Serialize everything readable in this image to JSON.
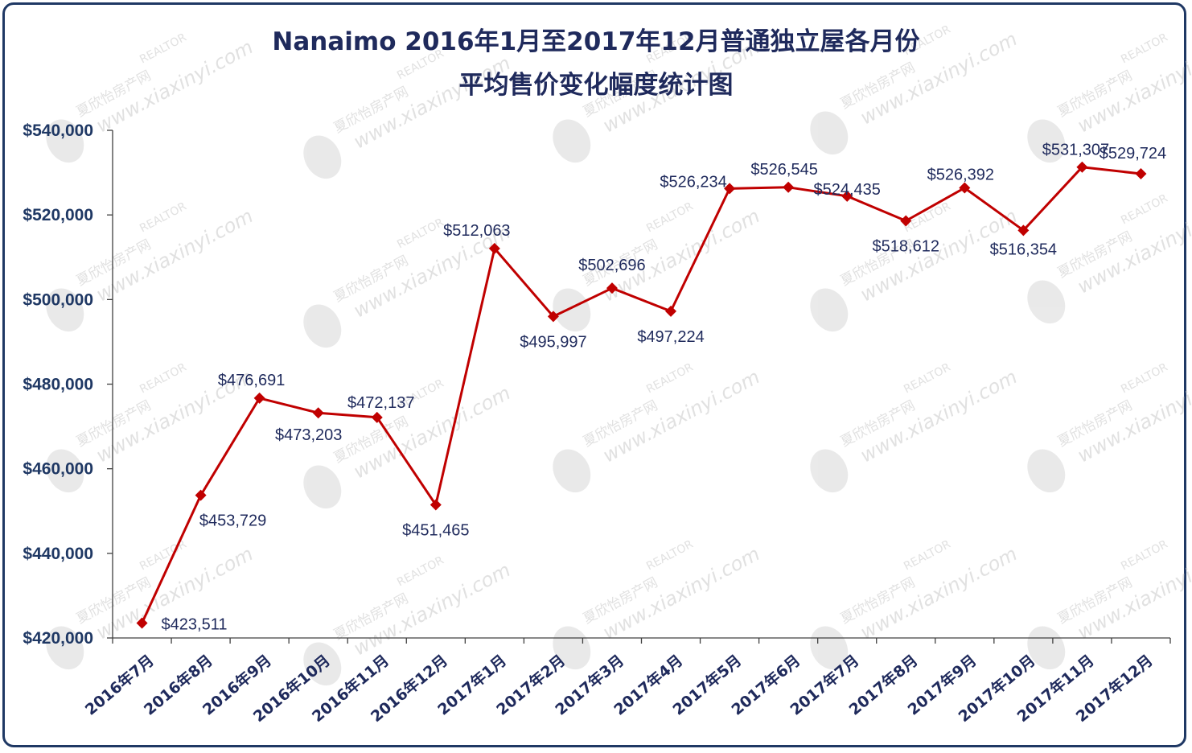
{
  "chart_data": {
    "type": "line",
    "title_line1": "Nanaimo 2016年1月至2017年12月普通独立屋各月份",
    "title_line2": "平均售价变化幅度统计图",
    "categories": [
      "2016年7月",
      "2016年8月",
      "2016年9月",
      "2016年10月",
      "2016年11月",
      "2016年12月",
      "2017年1月",
      "2017年2月",
      "2017年3月",
      "2017年4月",
      "2017年5月",
      "2017年6月",
      "2017年7月",
      "2017年8月",
      "2017年9月",
      "2017年10月",
      "2017年11月",
      "2017年12月"
    ],
    "values": [
      423511,
      453729,
      476691,
      473203,
      472137,
      451465,
      512063,
      495997,
      502696,
      497224,
      526234,
      526545,
      524435,
      518612,
      526392,
      516354,
      531307,
      529724
    ],
    "data_labels": [
      "$423,511",
      "$453,729",
      "$476,691",
      "$473,203",
      "$472,137",
      "$451,465",
      "$512,063",
      "$495,997",
      "$502,696",
      "$497,224",
      "$526,234",
      "$526,545",
      "$524,435",
      "$518,612",
      "$526,392",
      "$516,354",
      "$531,307",
      "$529,724"
    ],
    "yticks": [
      420000,
      440000,
      460000,
      480000,
      500000,
      520000,
      540000
    ],
    "ytick_labels": [
      "$420,000",
      "$440,000",
      "$460,000",
      "$480,000",
      "$500,000",
      "$520,000",
      "$540,000"
    ],
    "ylim": [
      420000,
      540000
    ],
    "grid": false,
    "legend": "none",
    "line_color": "#c00000",
    "marker": "diamond"
  },
  "watermark": {
    "brand_cn": "夏欣怡房产网",
    "site": "www.xiaxinyi.com",
    "badge": "REALTOR"
  },
  "colors": {
    "frame": "#1f3864",
    "text": "#1f2a5c",
    "axis": "#404040",
    "watermark": "#c9c9c9"
  }
}
